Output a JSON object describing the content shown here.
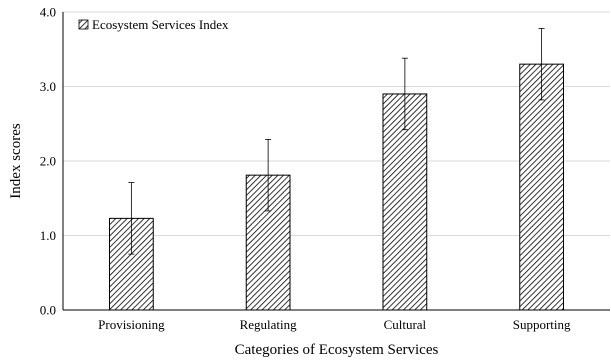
{
  "chart_data": {
    "type": "bar",
    "categories": [
      "Provisioning",
      "Regulating",
      "Cultural",
      "Supporting"
    ],
    "series": [
      {
        "name": "Ecosystem Services Index",
        "values": [
          1.23,
          1.81,
          2.9,
          3.3
        ],
        "error": [
          0.48,
          0.48,
          0.48,
          0.48
        ]
      }
    ],
    "xlabel": "Categories of Ecosystem Services",
    "ylabel": "Index scores",
    "ylim": [
      0,
      4
    ],
    "yticks": [
      "0.0",
      "1.0",
      "2.0",
      "3.0",
      "4.0"
    ],
    "grid": true,
    "legend_position": "top-left",
    "bar_pattern": "diagonal-hatch",
    "bar_stroke_color": "#000000",
    "grid_color": "#d9d9d9"
  }
}
